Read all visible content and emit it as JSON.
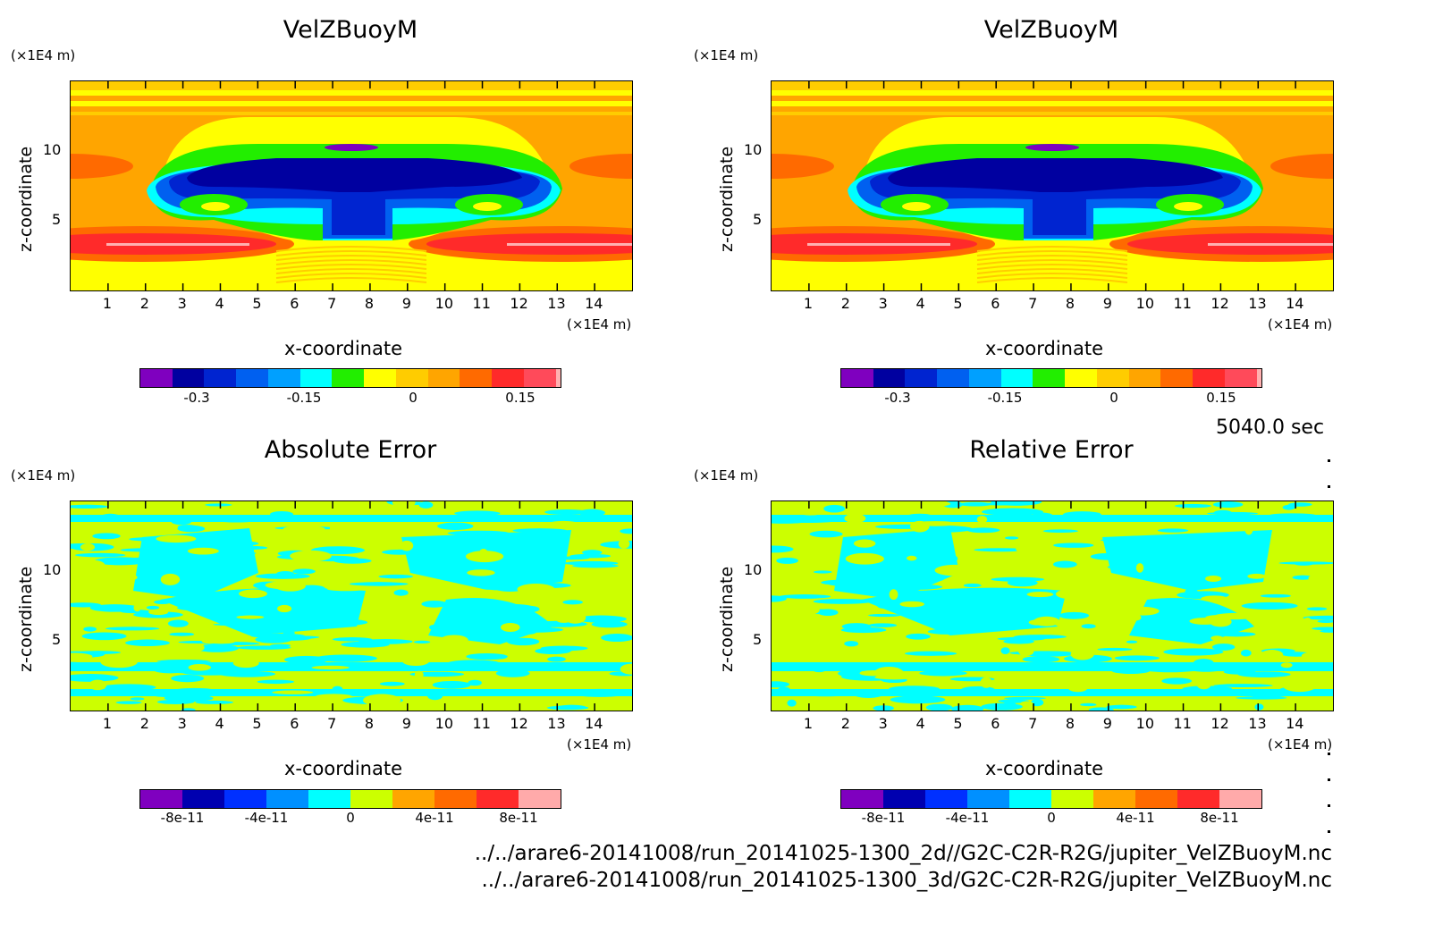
{
  "panels": [
    {
      "title": "VelZBuoyM",
      "type": "field",
      "colorbar": {
        "labels": [
          "-0.3",
          "-0.15",
          "0",
          "0.15"
        ]
      }
    },
    {
      "title": "VelZBuoyM",
      "type": "field",
      "colorbar": {
        "labels": [
          "-0.3",
          "-0.15",
          "0",
          "0.15"
        ]
      }
    },
    {
      "title": "Absolute Error",
      "type": "error",
      "colorbar": {
        "labels": [
          "-8e-11",
          "-4e-11",
          "0",
          "4e-11",
          "8e-11"
        ]
      }
    },
    {
      "title": "Relative Error",
      "type": "error",
      "colorbar": {
        "labels": [
          "-8e-11",
          "-4e-11",
          "0",
          "4e-11",
          "8e-11"
        ]
      }
    }
  ],
  "axes": {
    "x_label": "x-coordinate",
    "z_label": "z-coordinate",
    "x_unit": "(×1E4 m)",
    "z_unit": "(×1E4 m)",
    "x_ticks": [
      "1",
      "2",
      "3",
      "4",
      "5",
      "6",
      "7",
      "8",
      "9",
      "10",
      "11",
      "12",
      "13",
      "14"
    ],
    "z_ticks": [
      "5",
      "10"
    ]
  },
  "chart_data": [
    {
      "type": "heatmap",
      "title": "VelZBuoyM",
      "xlabel": "x-coordinate",
      "ylabel": "z-coordinate",
      "xlim": [
        0,
        15
      ],
      "ylim": [
        0,
        15
      ],
      "colorbar_levels": [
        "-0.3",
        "-0.15",
        "0",
        "0.15"
      ]
    },
    {
      "type": "heatmap",
      "title": "VelZBuoyM",
      "xlabel": "x-coordinate",
      "ylabel": "z-coordinate",
      "xlim": [
        0,
        15
      ],
      "ylim": [
        0,
        15
      ],
      "colorbar_levels": [
        "-0.3",
        "-0.15",
        "0",
        "0.15"
      ]
    },
    {
      "type": "heatmap",
      "title": "Absolute Error",
      "xlabel": "x-coordinate",
      "ylabel": "z-coordinate",
      "xlim": [
        0,
        15
      ],
      "ylim": [
        0,
        15
      ],
      "colorbar_levels": [
        "-8e-11",
        "-4e-11",
        "0",
        "4e-11",
        "8e-11"
      ]
    },
    {
      "type": "heatmap",
      "title": "Relative Error",
      "xlabel": "x-coordinate",
      "ylabel": "z-coordinate",
      "xlim": [
        0,
        15
      ],
      "ylim": [
        0,
        15
      ],
      "colorbar_levels": [
        "-8e-11",
        "-4e-11",
        "0",
        "4e-11",
        "8e-11"
      ]
    }
  ],
  "colors": {
    "field_scale": [
      "#7f00bf",
      "#0000a0",
      "#0024d0",
      "#0060f0",
      "#00a0ff",
      "#00ffff",
      "#22ee00",
      "#ffff00",
      "#ffcc00",
      "#ffa500",
      "#ff6a00",
      "#ff2a2a",
      "#ff4a5a",
      "#ffb0b0"
    ],
    "error_scale": [
      "#7f00bf",
      "#0000b0",
      "#0030ff",
      "#0090ff",
      "#00ffff",
      "#ccff00",
      "#ffa500",
      "#ff6a00",
      "#ff2a2a",
      "#ffaaaa"
    ],
    "cyan": "#00ffff",
    "yellow_green": "#ccff00"
  },
  "timestamp": "5040.0 sec",
  "footer": [
    "../../arare6-20141008/run_20141025-1300_2d//G2C-C2R-R2G/jupiter_VelZBuoyM.nc",
    "../../arare6-20141008/run_20141025-1300_3d/G2C-C2R-R2G/jupiter_VelZBuoyM.nc"
  ]
}
